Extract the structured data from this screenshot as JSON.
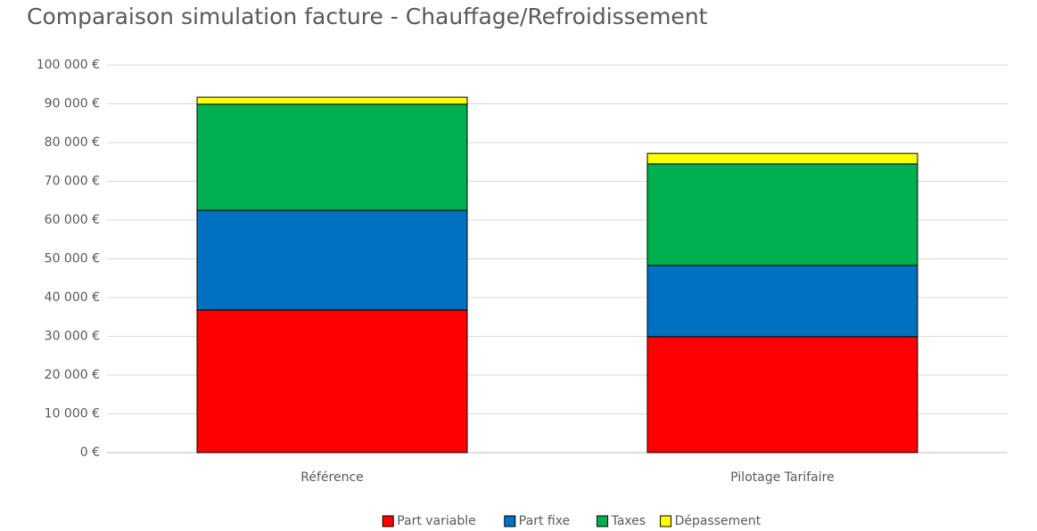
{
  "chart_data": {
    "type": "stacked_bar",
    "title": "Comparaison simulation facture - Chauffage/Refroidissement",
    "categories": [
      "Référence",
      "Pilotage Tarifaire"
    ],
    "series": [
      {
        "name": "Part variable",
        "color": "#ff0000",
        "values": [
          36800,
          29900
        ]
      },
      {
        "name": "Part fixe",
        "color": "#0070c0",
        "values": [
          25700,
          18400
        ]
      },
      {
        "name": "Taxes",
        "color": "#00b050",
        "values": [
          27400,
          26200
        ]
      },
      {
        "name": "Dépassement",
        "color": "#ffff00",
        "values": [
          1800,
          2700
        ]
      }
    ],
    "ylim": [
      0,
      100000
    ],
    "yticks": [
      {
        "value": 0,
        "label": "0 €"
      },
      {
        "value": 10000,
        "label": "10 000 €"
      },
      {
        "value": 20000,
        "label": "20 000 €"
      },
      {
        "value": 30000,
        "label": "30 000 €"
      },
      {
        "value": 40000,
        "label": "40 000 €"
      },
      {
        "value": 50000,
        "label": "50 000 €"
      },
      {
        "value": 60000,
        "label": "60 000 €"
      },
      {
        "value": 70000,
        "label": "70 000 €"
      },
      {
        "value": 80000,
        "label": "80 000 €"
      },
      {
        "value": 90000,
        "label": "90 000 €"
      },
      {
        "value": 100000,
        "label": "100 000 €"
      }
    ],
    "grid": true,
    "legend": "bottom"
  }
}
